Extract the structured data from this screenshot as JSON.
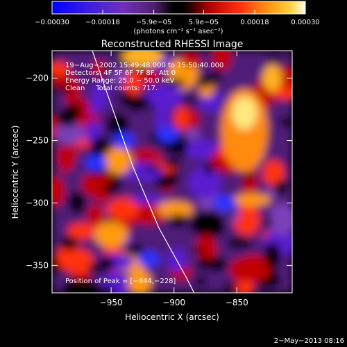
{
  "chart_data": {
    "type": "heatmap",
    "title": "Reconstructed RHESSI Image",
    "xlabel": "Heliocentric X (arcsec)",
    "ylabel": "Heliocentric Y (arcsec)",
    "x_ticks": [
      -950,
      -900,
      -850
    ],
    "y_ticks": [
      -200,
      -250,
      -300,
      -350
    ],
    "x_tick_labels": [
      "−950",
      "−900",
      "−850"
    ],
    "y_tick_labels": [
      "−200",
      "−250",
      "−300",
      "−350"
    ],
    "xlim": [
      -997,
      -806
    ],
    "ylim": [
      -372,
      -178
    ],
    "colorbar": {
      "label": "(photons cm⁻² s⁻¹ asec⁻²)",
      "range": [
        -0.0003,
        0.0003
      ],
      "tick_values": [
        -0.0003,
        -0.00018,
        -5.9e-05,
        5.9e-05,
        0.00018,
        0.0003
      ],
      "tick_labels": [
        "−0.00030",
        "−0.00018",
        "−5.9e−05",
        "5.9e−05",
        "0.00018",
        "0.00030"
      ],
      "colormap": [
        "#0000ff",
        "#5a1fd0",
        "#7a40b8",
        "#000000",
        "#c00000",
        "#ff3010",
        "#ff9a10",
        "#ffd040",
        "#ffffe0"
      ]
    },
    "annotations": [
      "19−Aug−2002 15:49:48.000 to 15:50:40.000",
      "Detectors: 4F 5F 6F 7F 8F, Att 0",
      "Energy Range: 25.0 − 50.0 keV",
      "Clean     Total counts: 717."
    ],
    "peak_label": "Position of Peak = [−844,−228]",
    "peak": [
      -844,
      -228
    ],
    "limb_line": [
      [
        -965,
        -178
      ],
      [
        -947,
        -230
      ],
      [
        -933,
        -270
      ],
      [
        -912,
        -320
      ],
      [
        -890,
        -360
      ],
      [
        -884,
        -372
      ]
    ]
  },
  "footer": {
    "date": "2−May−2013 08:16"
  }
}
